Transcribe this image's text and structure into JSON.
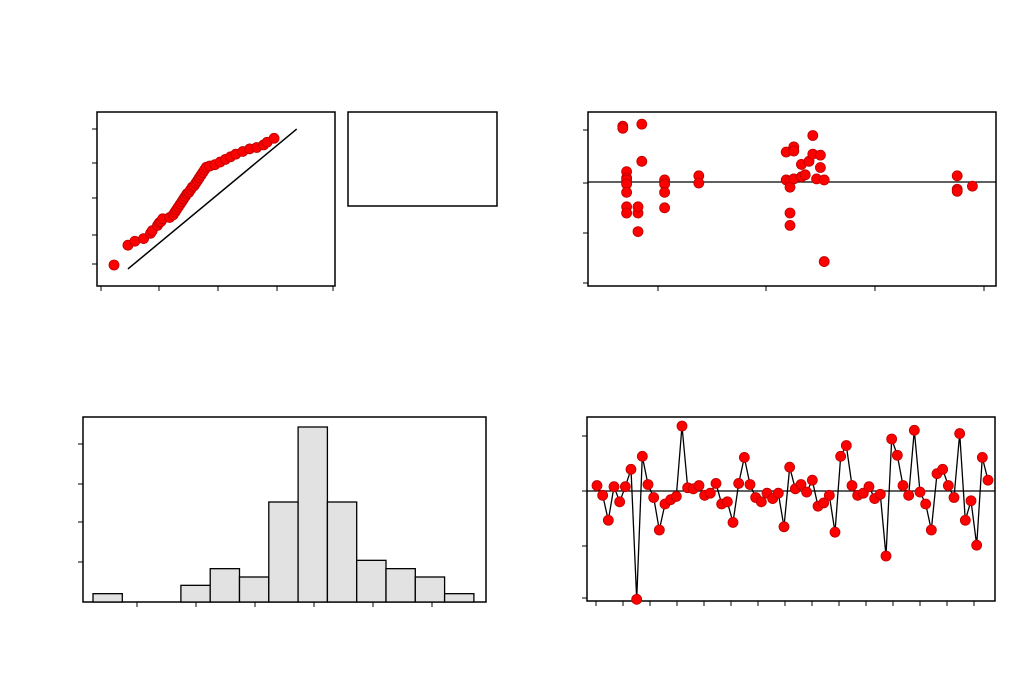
{
  "chart_data": [
    {
      "type": "scatter",
      "panel": "normal-probability-plot",
      "points": [
        [
          0.0,
          0.0
        ],
        [
          0.08,
          0.15
        ],
        [
          0.12,
          0.18
        ],
        [
          0.17,
          0.2
        ],
        [
          0.21,
          0.24
        ],
        [
          0.22,
          0.26
        ],
        [
          0.25,
          0.3
        ],
        [
          0.26,
          0.32
        ],
        [
          0.27,
          0.33
        ],
        [
          0.28,
          0.35
        ],
        [
          0.32,
          0.36
        ],
        [
          0.34,
          0.38
        ],
        [
          0.35,
          0.4
        ],
        [
          0.36,
          0.42
        ],
        [
          0.37,
          0.44
        ],
        [
          0.38,
          0.46
        ],
        [
          0.39,
          0.48
        ],
        [
          0.4,
          0.5
        ],
        [
          0.41,
          0.52
        ],
        [
          0.42,
          0.54
        ],
        [
          0.43,
          0.55
        ],
        [
          0.44,
          0.57
        ],
        [
          0.45,
          0.59
        ],
        [
          0.46,
          0.6
        ],
        [
          0.47,
          0.62
        ],
        [
          0.48,
          0.64
        ],
        [
          0.49,
          0.66
        ],
        [
          0.5,
          0.68
        ],
        [
          0.51,
          0.7
        ],
        [
          0.52,
          0.72
        ],
        [
          0.53,
          0.74
        ],
        [
          0.55,
          0.75
        ],
        [
          0.58,
          0.76
        ],
        [
          0.61,
          0.78
        ],
        [
          0.64,
          0.8
        ],
        [
          0.67,
          0.82
        ],
        [
          0.7,
          0.84
        ],
        [
          0.74,
          0.86
        ],
        [
          0.78,
          0.88
        ],
        [
          0.82,
          0.89
        ],
        [
          0.86,
          0.91
        ],
        [
          0.88,
          0.93
        ],
        [
          0.92,
          0.96
        ]
      ],
      "fit_line": [
        [
          0.08,
          -0.03
        ],
        [
          1.05,
          1.03
        ]
      ],
      "legend_box": true
    },
    {
      "type": "scatter",
      "panel": "residuals-versus-fits",
      "reference_line": 0,
      "points": [
        [
          0.06,
          0.54
        ],
        [
          0.06,
          0.52
        ],
        [
          0.07,
          0.1
        ],
        [
          0.07,
          0.04
        ],
        [
          0.07,
          0.02
        ],
        [
          0.07,
          -0.02
        ],
        [
          0.07,
          -0.1
        ],
        [
          0.07,
          -0.24
        ],
        [
          0.07,
          -0.3
        ],
        [
          0.1,
          -0.3
        ],
        [
          0.1,
          -0.24
        ],
        [
          0.1,
          -0.48
        ],
        [
          0.11,
          0.56
        ],
        [
          0.11,
          0.2
        ],
        [
          0.17,
          0.02
        ],
        [
          0.17,
          -0.02
        ],
        [
          0.17,
          -0.1
        ],
        [
          0.17,
          -0.25
        ],
        [
          0.26,
          0.06
        ],
        [
          0.26,
          -0.01
        ],
        [
          0.49,
          0.29
        ],
        [
          0.49,
          0.02
        ],
        [
          0.5,
          0.01
        ],
        [
          0.5,
          -0.05
        ],
        [
          0.5,
          -0.3
        ],
        [
          0.5,
          -0.42
        ],
        [
          0.51,
          0.03
        ],
        [
          0.51,
          0.34
        ],
        [
          0.51,
          0.3
        ],
        [
          0.53,
          0.05
        ],
        [
          0.53,
          0.17
        ],
        [
          0.54,
          0.07
        ],
        [
          0.55,
          0.2
        ],
        [
          0.56,
          0.45
        ],
        [
          0.56,
          0.27
        ],
        [
          0.57,
          0.03
        ],
        [
          0.58,
          0.26
        ],
        [
          0.58,
          0.14
        ],
        [
          0.59,
          0.02
        ],
        [
          0.59,
          -0.77
        ],
        [
          0.94,
          0.06
        ],
        [
          0.94,
          -0.07
        ],
        [
          0.94,
          -0.09
        ],
        [
          0.98,
          -0.04
        ]
      ]
    },
    {
      "type": "bar",
      "panel": "histogram",
      "values": [
        1,
        0,
        0,
        2,
        4,
        3,
        12,
        21,
        12,
        5,
        4,
        3,
        1
      ]
    },
    {
      "type": "line",
      "panel": "residuals-versus-order",
      "reference_line": 0,
      "values": [
        0.05,
        -0.04,
        -0.27,
        0.04,
        -0.1,
        0.04,
        0.2,
        -1.0,
        0.32,
        0.06,
        -0.06,
        -0.36,
        -0.12,
        -0.08,
        -0.05,
        0.6,
        0.03,
        0.02,
        0.05,
        -0.04,
        -0.02,
        0.07,
        -0.12,
        -0.1,
        -0.29,
        0.07,
        0.31,
        0.06,
        -0.06,
        -0.1,
        -0.02,
        -0.07,
        -0.02,
        -0.33,
        0.22,
        0.02,
        0.06,
        -0.01,
        0.1,
        -0.14,
        -0.11,
        -0.04,
        -0.38,
        0.32,
        0.42,
        0.05,
        -0.04,
        -0.02,
        0.04,
        -0.07,
        -0.03,
        -0.6,
        0.48,
        0.33,
        0.05,
        -0.04,
        0.56,
        -0.01,
        -0.12,
        -0.36,
        0.16,
        0.2,
        0.05,
        -0.06,
        0.53,
        -0.27,
        -0.09,
        -0.5,
        0.31,
        0.1
      ]
    }
  ]
}
